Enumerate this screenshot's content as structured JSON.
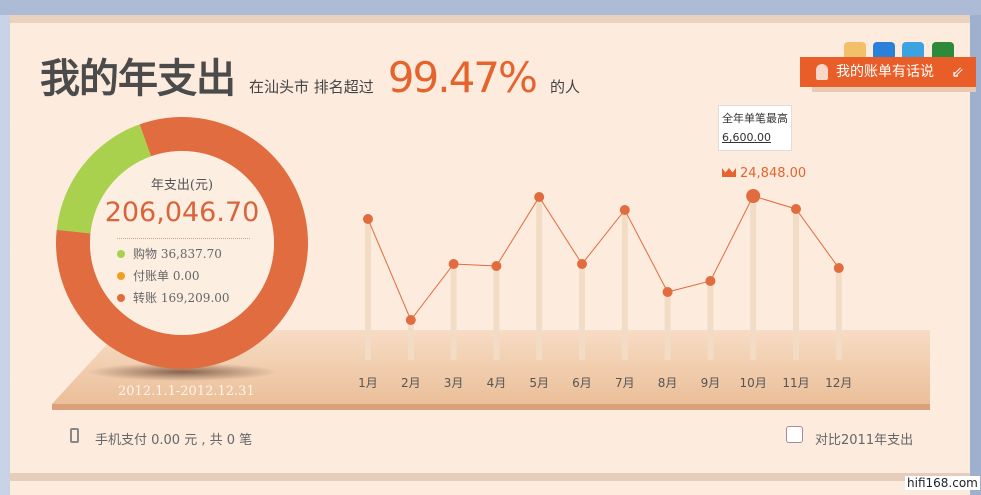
{
  "header": {
    "title": "我的年支出",
    "city_text": "在汕头市 排名超过",
    "percent": "99.47%",
    "suffix": "的人"
  },
  "share": {
    "icons": [
      "weibo-icon",
      "qzone-icon",
      "tencent-weibo-icon",
      "douban-icon"
    ],
    "banner_label": "我的账单有话说",
    "banner_arrow": "⇙"
  },
  "donut": {
    "title": "年支出(元)",
    "total": "206,046.70",
    "date_range": "2012.1.1-2012.12.31",
    "items": [
      {
        "label": "购物 36,837.70",
        "value": 36837.7,
        "color": "#a9d14e"
      },
      {
        "label": "付账单 0.00",
        "value": 0,
        "color": "#f0a020"
      },
      {
        "label": "转账 169,209.00",
        "value": 169209.0,
        "color": "#e06c3f"
      }
    ]
  },
  "chart_data": {
    "type": "line",
    "categories": [
      "1月",
      "2月",
      "3月",
      "4月",
      "5月",
      "6月",
      "7月",
      "8月",
      "9月",
      "10月",
      "11月",
      "12月"
    ],
    "values": [
      21360,
      6060,
      14545,
      14240,
      24700,
      14545,
      22730,
      10300,
      11970,
      24848,
      22880,
      13940
    ],
    "max_label": "24,848.00",
    "max_index": 9,
    "color": "#e06c3f"
  },
  "tooltip": {
    "title": "全年单笔最高",
    "value": "6,600.00"
  },
  "footer": {
    "mobile_text": "手机支付 0.00 元 , 共 0 笔",
    "compare_label": "对比2011年支出",
    "compare_checked": false
  },
  "watermark": "hifi168.com"
}
